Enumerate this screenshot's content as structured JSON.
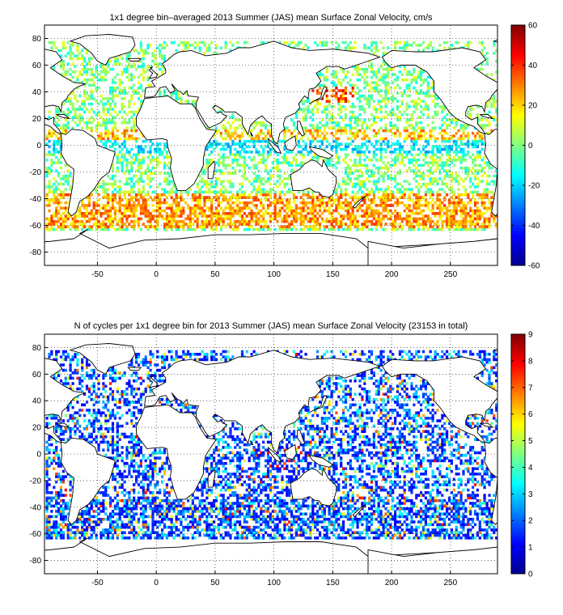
{
  "chart_data": [
    {
      "type": "heatmap",
      "title": "1x1 degree bin–averaged 2013 Summer (JAS) mean Surface Zonal Velocity, cm/s",
      "xlabel": "",
      "ylabel": "",
      "xlim": [
        -95,
        290
      ],
      "ylim": [
        -90,
        90
      ],
      "xticks": [
        -50,
        0,
        50,
        100,
        150,
        200,
        250
      ],
      "yticks": [
        -80,
        -60,
        -40,
        -20,
        0,
        20,
        40,
        60,
        80
      ],
      "grid": true,
      "colorbar": {
        "min": -60,
        "max": 60,
        "ticks": [
          -60,
          -40,
          -20,
          0,
          20,
          40,
          60
        ],
        "colormap": "jet"
      }
    },
    {
      "type": "heatmap",
      "title": "N of cycles per 1x1 degree bin for 2013 Summer (JAS) mean Surface Zonal Velocity (23153 in total)",
      "xlabel": "",
      "ylabel": "",
      "xlim": [
        -95,
        290
      ],
      "ylim": [
        -90,
        90
      ],
      "xticks": [
        -50,
        0,
        50,
        100,
        150,
        200,
        250
      ],
      "yticks": [
        -80,
        -60,
        -40,
        -20,
        0,
        20,
        40,
        60,
        80
      ],
      "grid": true,
      "colorbar": {
        "min": 0,
        "max": 9,
        "ticks": [
          0,
          1,
          2,
          3,
          4,
          5,
          6,
          7,
          8,
          9
        ],
        "colormap": "jet"
      }
    }
  ]
}
